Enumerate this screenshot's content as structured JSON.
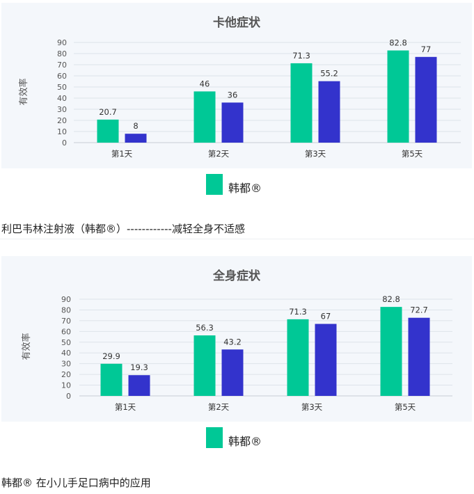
{
  "colors": {
    "series_a": "#00c896",
    "series_b": "#3333cc",
    "panel_bg": "#f4f7fb",
    "grid": "#dde3ea",
    "axis_text": "#555555"
  },
  "legend": {
    "label": "韩都®"
  },
  "captions": {
    "first": "利巴韦林注射液（韩都®）------------减轻全身不适感",
    "second": "韩都® 在小儿手足口病中的应用"
  },
  "chart_data": [
    {
      "type": "bar",
      "title": "卡他症状",
      "ylabel": "有效率",
      "xlabel": "",
      "ylim": [
        0,
        90
      ],
      "yticks": [
        "0",
        "10",
        "20",
        "30",
        "40",
        "50",
        "60",
        "70",
        "80",
        "90"
      ],
      "categories": [
        "第1天",
        "第2天",
        "第3天",
        "第5天"
      ],
      "grid": true,
      "series": [
        {
          "name": "韩都®",
          "values": [
            20.7,
            46,
            71.3,
            82.8
          ],
          "labels": [
            "20.7",
            "46",
            "71.3",
            "82.8"
          ]
        },
        {
          "values": [
            8,
            36,
            55.2,
            77
          ],
          "labels": [
            "8",
            "36",
            "55.2",
            "77"
          ]
        }
      ]
    },
    {
      "type": "bar",
      "title": "全身症状",
      "ylabel": "有效率",
      "xlabel": "",
      "ylim": [
        0,
        90
      ],
      "yticks": [
        "0",
        "10",
        "20",
        "30",
        "40",
        "50",
        "60",
        "70",
        "80",
        "90"
      ],
      "categories": [
        "第1天",
        "第2天",
        "第3天",
        "第5天"
      ],
      "grid": true,
      "series": [
        {
          "name": "韩都®",
          "values": [
            29.9,
            56.3,
            71.3,
            82.8
          ],
          "labels": [
            "29.9",
            "56.3",
            "71.3",
            "82.8"
          ]
        },
        {
          "values": [
            19.3,
            43.2,
            67,
            72.7
          ],
          "labels": [
            "19.3",
            "43.2",
            "67",
            "72.7"
          ]
        }
      ]
    }
  ]
}
